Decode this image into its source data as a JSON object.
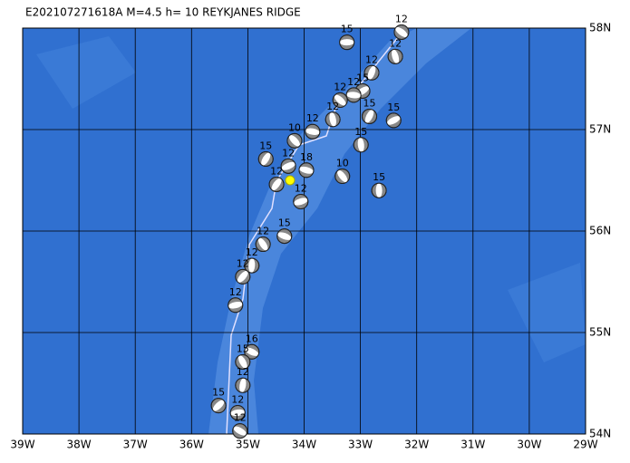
{
  "chart_data": {
    "type": "scatter",
    "title": "E202107271618A  M=4.5  h= 10  REYKJANES RIDGE",
    "xlim": [
      -39,
      -29
    ],
    "ylim": [
      54,
      58
    ],
    "xticks": [
      {
        "value": -39,
        "label": "39W"
      },
      {
        "value": -38,
        "label": "38W"
      },
      {
        "value": -37,
        "label": "37W"
      },
      {
        "value": -36,
        "label": "36W"
      },
      {
        "value": -35,
        "label": "35W"
      },
      {
        "value": -34,
        "label": "34W"
      },
      {
        "value": -33,
        "label": "33W"
      },
      {
        "value": -32,
        "label": "32W"
      },
      {
        "value": -31,
        "label": "31W"
      },
      {
        "value": -30,
        "label": "30W"
      },
      {
        "value": -29,
        "label": "29W"
      }
    ],
    "yticks": [
      {
        "value": 54,
        "label": "54N"
      },
      {
        "value": 55,
        "label": "55N"
      },
      {
        "value": 56,
        "label": "56N"
      },
      {
        "value": 57,
        "label": "57N"
      },
      {
        "value": 58,
        "label": "58N"
      }
    ],
    "grid": true,
    "epicenter": {
      "x": -34.25,
      "y": 56.5,
      "color": "#ffff00"
    },
    "series": [
      {
        "color": "#888888",
        "x": [
          -33.24,
          -32.27,
          -32.38,
          -32.8,
          -32.96,
          -33.12,
          -33.36,
          -33.49,
          -32.84,
          -32.41,
          -33.85,
          -34.17,
          -32.99,
          -34.68,
          -34.28,
          -33.96,
          -33.32,
          -32.67,
          -34.49,
          -34.06,
          -34.35,
          -34.73,
          -34.93,
          -35.09,
          -35.22,
          -34.93,
          -35.09,
          -35.09,
          -35.52,
          -35.18,
          -35.14
        ],
        "values": [
          57.86,
          57.96,
          57.72,
          57.56,
          57.38,
          57.34,
          57.29,
          57.1,
          57.13,
          57.09,
          56.98,
          56.89,
          56.85,
          56.71,
          56.64,
          56.6,
          56.54,
          56.4,
          56.46,
          56.29,
          55.95,
          55.87,
          55.66,
          55.55,
          55.27,
          54.81,
          54.71,
          54.48,
          54.28,
          54.21,
          54.03
        ],
        "depths": [
          15,
          12,
          12,
          12,
          15,
          12,
          12,
          12,
          15,
          15,
          12,
          10,
          15,
          15,
          12,
          18,
          10,
          15,
          12,
          12,
          15,
          12,
          12,
          12,
          12,
          16,
          15,
          12,
          15,
          12,
          12
        ]
      }
    ]
  }
}
